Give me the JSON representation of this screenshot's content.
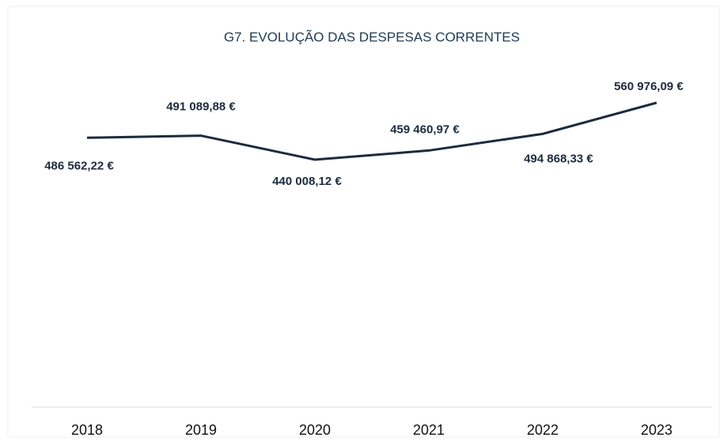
{
  "chart_data": {
    "type": "line",
    "title": "G7. EVOLUÇÃO DAS DESPESAS CORRENTES",
    "categories": [
      "2018",
      "2019",
      "2020",
      "2021",
      "2022",
      "2023"
    ],
    "series": [
      {
        "color": "#1d2b3f",
        "values": [
          486562.22,
          491089.88,
          440008.12,
          459460.97,
          494868.33,
          560976.09
        ],
        "value_labels": [
          "486 562,22 €",
          "491 089,88 €",
          "440 008,12 €",
          "459 460,97 €",
          "494 868,33 €",
          "560 976,09 €"
        ]
      }
    ]
  }
}
